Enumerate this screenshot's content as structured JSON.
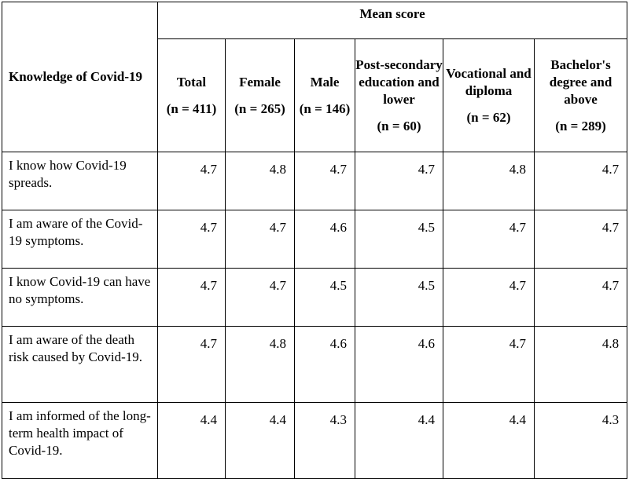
{
  "table": {
    "row_header": "Knowledge of Covid-19",
    "group_header": "Mean score",
    "columns": [
      {
        "label": "Total",
        "n": "(n = 411)"
      },
      {
        "label": "Female",
        "n": "(n = 265)"
      },
      {
        "label": "Male",
        "n": "(n = 146)"
      },
      {
        "label": "Post-secondary education and lower",
        "n": "(n = 60)"
      },
      {
        "label": "Vocational and diploma",
        "n": "(n = 62)"
      },
      {
        "label": "Bachelor's degree and above",
        "n": "(n = 289)"
      }
    ],
    "rows": [
      {
        "label": "I know how Covid-19 spreads.",
        "values": [
          "4.7",
          "4.8",
          "4.7",
          "4.7",
          "4.8",
          "4.7"
        ]
      },
      {
        "label": "I am aware of the Covid-19 symptoms.",
        "values": [
          "4.7",
          "4.7",
          "4.6",
          "4.5",
          "4.7",
          "4.7"
        ]
      },
      {
        "label": "I know Covid-19 can have no symptoms.",
        "values": [
          "4.7",
          "4.7",
          "4.5",
          "4.5",
          "4.7",
          "4.7"
        ]
      },
      {
        "label": "I am aware of the death risk caused by Covid-19.",
        "values": [
          "4.7",
          "4.8",
          "4.6",
          "4.6",
          "4.7",
          "4.8"
        ]
      },
      {
        "label": "I am informed of the long-term health impact of Covid-19.",
        "values": [
          "4.4",
          "4.4",
          "4.3",
          "4.4",
          "4.4",
          "4.3"
        ]
      }
    ]
  }
}
